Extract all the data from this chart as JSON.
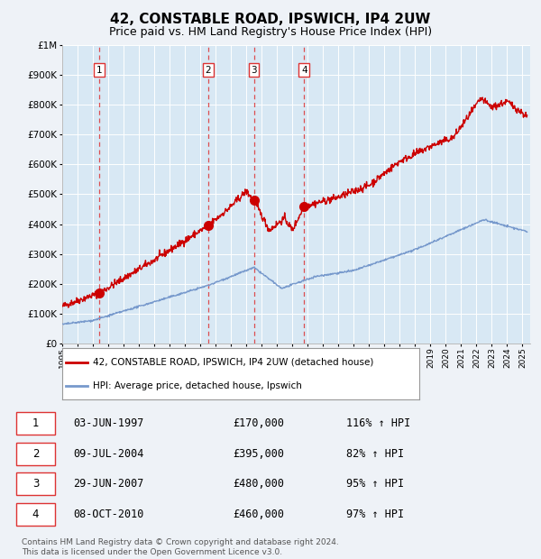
{
  "title": "42, CONSTABLE ROAD, IPSWICH, IP4 2UW",
  "subtitle": "Price paid vs. HM Land Registry's House Price Index (HPI)",
  "title_fontsize": 11,
  "subtitle_fontsize": 9,
  "background_color": "#eef2f7",
  "plot_bg_color": "#d8e8f4",
  "grid_color": "#ffffff",
  "ylim": [
    0,
    1000000
  ],
  "yticks": [
    0,
    100000,
    200000,
    300000,
    400000,
    500000,
    600000,
    700000,
    800000,
    900000,
    1000000
  ],
  "xlim_start": 1995.0,
  "xlim_end": 2025.5,
  "sale_dates": [
    1997.42,
    2004.52,
    2007.49,
    2010.77
  ],
  "sale_prices": [
    170000,
    395000,
    480000,
    460000
  ],
  "sale_labels": [
    "1",
    "2",
    "3",
    "4"
  ],
  "red_line_color": "#cc0000",
  "blue_line_color": "#7799cc",
  "sale_marker_color": "#cc0000",
  "dashed_line_color": "#dd3333",
  "legend_label_red": "42, CONSTABLE ROAD, IPSWICH, IP4 2UW (detached house)",
  "legend_label_blue": "HPI: Average price, detached house, Ipswich",
  "table_rows": [
    {
      "num": "1",
      "date": "03-JUN-1997",
      "price": "£170,000",
      "pct": "116% ↑ HPI"
    },
    {
      "num": "2",
      "date": "09-JUL-2004",
      "price": "£395,000",
      "pct": "82% ↑ HPI"
    },
    {
      "num": "3",
      "date": "29-JUN-2007",
      "price": "£480,000",
      "pct": "95% ↑ HPI"
    },
    {
      "num": "4",
      "date": "08-OCT-2010",
      "price": "£460,000",
      "pct": "97% ↑ HPI"
    }
  ],
  "footnote": "Contains HM Land Registry data © Crown copyright and database right 2024.\nThis data is licensed under the Open Government Licence v3.0.",
  "footnote_fontsize": 6.5
}
